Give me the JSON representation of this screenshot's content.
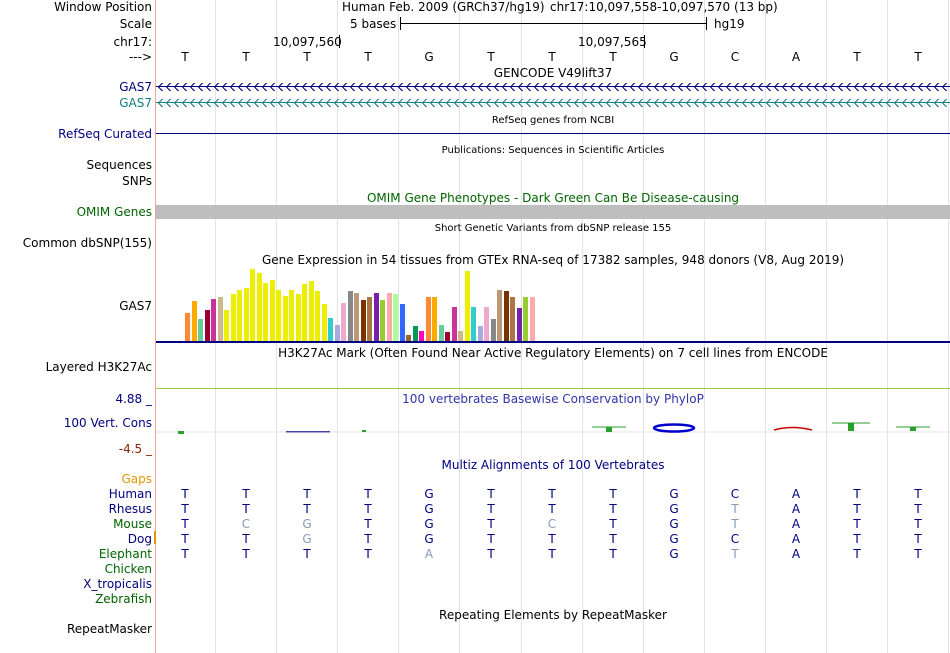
{
  "header": {
    "assembly": "Human Feb. 2009 (GRCh37/hg19)",
    "position": "chr17:10,097,558-10,097,570 (13 bp)",
    "scale_text": "5 bases",
    "db": "hg19",
    "coord_1": "10,097,560",
    "coord_2": "10,097,565",
    "arrow": "--->"
  },
  "labels": {
    "window_position": "Window Position",
    "scale": "Scale",
    "chrom": "chr17:",
    "gas7_1": "GAS7",
    "gas7_2": "GAS7",
    "refseq": "RefSeq Curated",
    "sequences": "Sequences",
    "snps": "SNPs",
    "omim": "OMIM Genes",
    "dbsnp": "Common dbSNP(155)",
    "gtex_gene": "GAS7",
    "h3k27ac": "Layered H3K27Ac",
    "phylop_max": "4.88 _",
    "phylop": "100 Vert. Cons",
    "phylop_min": "-4.5 _",
    "gaps": "Gaps",
    "repeatmasker": "RepeatMasker"
  },
  "titles": {
    "gencode": "GENCODE V49lift37",
    "refseq": "RefSeq genes from NCBI",
    "publications": "Publications: Sequences in Scientific Articles",
    "omim": "OMIM Gene Phenotypes - Dark Green Can Be Disease-causing",
    "dbsnp": "Short Genetic Variants from dbSNP release 155",
    "gtex": "Gene Expression in 54 tissues from GTEx RNA-seq of 17382 samples, 948 donors (V8, Aug 2019)",
    "h3k27ac": "H3K27Ac Mark (Often Found Near Active Regulatory Elements) on 7 cell lines from ENCODE",
    "phylop": "100 vertebrates Basewise Conservation by PhyloP",
    "multiz": "Multiz Alignments of 100 Vertebrates",
    "repeatmasker": "Repeating Elements by RepeatMasker"
  },
  "sequence": [
    "T",
    "T",
    "T",
    "T",
    "G",
    "T",
    "T",
    "T",
    "G",
    "C",
    "A",
    "T",
    "T"
  ],
  "alignment": [
    {
      "species": "Human",
      "color": "#000080",
      "bases": [
        "T",
        "T",
        "T",
        "T",
        "G",
        "T",
        "T",
        "T",
        "G",
        "C",
        "A",
        "T",
        "T"
      ],
      "faint": []
    },
    {
      "species": "Rhesus",
      "color": "#000080",
      "bases": [
        "T",
        "T",
        "T",
        "T",
        "G",
        "T",
        "T",
        "T",
        "G",
        "T",
        "A",
        "T",
        "T"
      ],
      "faint": [
        9
      ]
    },
    {
      "species": "Mouse",
      "color": "#006400",
      "bases": [
        "T",
        "C",
        "G",
        "T",
        "G",
        "T",
        "C",
        "T",
        "G",
        "T",
        "A",
        "T",
        "T"
      ],
      "faint": [
        1,
        2,
        6,
        9
      ]
    },
    {
      "species": "Dog",
      "color": "#000080",
      "bases": [
        "T",
        "T",
        "G",
        "T",
        "G",
        "T",
        "T",
        "T",
        "G",
        "C",
        "A",
        "T",
        "T"
      ],
      "faint": [
        2
      ]
    },
    {
      "species": "Elephant",
      "color": "#006400",
      "bases": [
        "T",
        "T",
        "T",
        "T",
        "A",
        "T",
        "T",
        "T",
        "G",
        "T",
        "A",
        "T",
        "T"
      ],
      "faint": [
        4,
        9
      ]
    },
    {
      "species": "Chicken",
      "color": "#006400",
      "bases": [],
      "faint": []
    },
    {
      "species": "X_tropicalis",
      "color": "#000080",
      "bases": [],
      "faint": []
    },
    {
      "species": "Zebrafish",
      "color": "#006400",
      "bases": [],
      "faint": []
    }
  ],
  "gtex_bar_levels": [
    0.38,
    0.55,
    0.3,
    0.42,
    0.58,
    0.6,
    0.42,
    0.65,
    0.7,
    0.72,
    0.98,
    0.93,
    0.8,
    0.83,
    0.7,
    0.62,
    0.7,
    0.65,
    0.78,
    0.82,
    0.68,
    0.5,
    0.32,
    0.22,
    0.52,
    0.68,
    0.66,
    0.56,
    0.6,
    0.66,
    0.56,
    0.66,
    0.64,
    0.5,
    0.08,
    0.2,
    0.14,
    0.6,
    0.6,
    0.22,
    0.12,
    0.47,
    0.14,
    0.96,
    0.47,
    0.2,
    0.47,
    0.3,
    0.7,
    0.68,
    0.6,
    0.45,
    0.6,
    0.6
  ],
  "colors": {
    "label_navy": "#000080",
    "label_green": "#006400",
    "omim_bar": "#bebebe",
    "gaps_label": "#e69500",
    "gas7_teal": "#118080",
    "h3k27ac_line": "#9ccc3c",
    "phylop_pos": "#2aa02a",
    "phylop_neg": "#8b2200",
    "gtex_palette": [
      "#ff8833",
      "#ffaa00",
      "#66cc99",
      "#990033",
      "#cc3399",
      "#ccbb88",
      "#eeee00",
      "#33cccc",
      "#aaaadd",
      "#eeaacc",
      "#888888",
      "#bb9977",
      "#773300",
      "#aa7744",
      "#7722aa",
      "#99cc33",
      "#ffaaaa",
      "#aaff99",
      "#3366ff",
      "#996633",
      "#009955",
      "#ff00bb"
    ]
  }
}
